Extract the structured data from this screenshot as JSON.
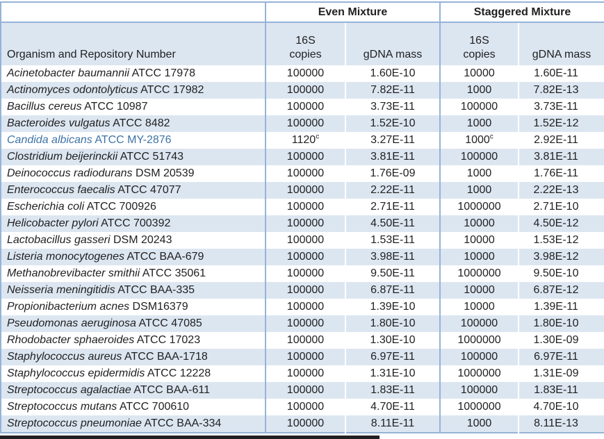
{
  "header": {
    "group_even": "Even Mixture",
    "group_staggered": "Staggered Mixture",
    "organism_col": "Organism and Repository Number",
    "copies_line1": "16S",
    "copies_line2": "copies",
    "mass_label": "gDNA mass"
  },
  "colors": {
    "border_blue": "#95B3D7",
    "row_band": "#DCE6F1",
    "highlight_text": "#3E73A6",
    "text": "#1F1F1F"
  },
  "rows": [
    {
      "genus_species": "Acinetobacter baumannii",
      "strain": " ATCC 17978",
      "even_copies": "100000",
      "even_copies_sup": "",
      "even_gdna_mass": "1.60E-10",
      "stag_copies": "10000",
      "stag_copies_sup": "",
      "stag_gdna_mass": "1.60E-11",
      "highlight": false
    },
    {
      "genus_species": "Actinomyces odontolyticus",
      "strain": " ATCC 17982",
      "even_copies": "100000",
      "even_copies_sup": "",
      "even_gdna_mass": "7.82E-11",
      "stag_copies": "1000",
      "stag_copies_sup": "",
      "stag_gdna_mass": "7.82E-13",
      "highlight": false
    },
    {
      "genus_species": "Bacillus cereus",
      "strain": " ATCC 10987",
      "even_copies": "100000",
      "even_copies_sup": "",
      "even_gdna_mass": "3.73E-11",
      "stag_copies": "100000",
      "stag_copies_sup": "",
      "stag_gdna_mass": "3.73E-11",
      "highlight": false
    },
    {
      "genus_species": "Bacteroides vulgatus",
      "strain": " ATCC 8482",
      "even_copies": "100000",
      "even_copies_sup": "",
      "even_gdna_mass": "1.52E-10",
      "stag_copies": "1000",
      "stag_copies_sup": "",
      "stag_gdna_mass": "1.52E-12",
      "highlight": false
    },
    {
      "genus_species": "Candida albicans",
      "strain": " ATCC MY-2876",
      "even_copies": "1120",
      "even_copies_sup": "c",
      "even_gdna_mass": "3.27E-11",
      "stag_copies": "1000",
      "stag_copies_sup": "c",
      "stag_gdna_mass": "2.92E-11",
      "highlight": true
    },
    {
      "genus_species": "Clostridium beijerinckii",
      "strain": " ATCC 51743",
      "even_copies": "100000",
      "even_copies_sup": "",
      "even_gdna_mass": "3.81E-11",
      "stag_copies": "100000",
      "stag_copies_sup": "",
      "stag_gdna_mass": "3.81E-11",
      "highlight": false
    },
    {
      "genus_species": "Deinococcus radiodurans",
      "strain": " DSM 20539",
      "even_copies": "100000",
      "even_copies_sup": "",
      "even_gdna_mass": "1.76E-09",
      "stag_copies": "1000",
      "stag_copies_sup": "",
      "stag_gdna_mass": "1.76E-11",
      "highlight": false
    },
    {
      "genus_species": "Enterococcus faecalis",
      "strain": " ATCC 47077",
      "even_copies": "100000",
      "even_copies_sup": "",
      "even_gdna_mass": "2.22E-11",
      "stag_copies": "1000",
      "stag_copies_sup": "",
      "stag_gdna_mass": "2.22E-13",
      "highlight": false
    },
    {
      "genus_species": "Escherichia coli",
      "strain": " ATCC 700926",
      "even_copies": "100000",
      "even_copies_sup": "",
      "even_gdna_mass": "2.71E-11",
      "stag_copies": "1000000",
      "stag_copies_sup": "",
      "stag_gdna_mass": "2.71E-10",
      "highlight": false
    },
    {
      "genus_species": "Helicobacter pylori",
      "strain": " ATCC 700392",
      "even_copies": "100000",
      "even_copies_sup": "",
      "even_gdna_mass": "4.50E-11",
      "stag_copies": "10000",
      "stag_copies_sup": "",
      "stag_gdna_mass": "4.50E-12",
      "highlight": false
    },
    {
      "genus_species": "Lactobacillus gasseri",
      "strain": " DSM 20243",
      "even_copies": "100000",
      "even_copies_sup": "",
      "even_gdna_mass": "1.53E-11",
      "stag_copies": "10000",
      "stag_copies_sup": "",
      "stag_gdna_mass": "1.53E-12",
      "highlight": false
    },
    {
      "genus_species": "Listeria monocytogenes",
      "strain": " ATCC BAA-679",
      "even_copies": "100000",
      "even_copies_sup": "",
      "even_gdna_mass": "3.98E-11",
      "stag_copies": "10000",
      "stag_copies_sup": "",
      "stag_gdna_mass": "3.98E-12",
      "highlight": false
    },
    {
      "genus_species": "Methanobrevibacter smithii",
      "strain": " ATCC 35061",
      "even_copies": "100000",
      "even_copies_sup": "",
      "even_gdna_mass": "9.50E-11",
      "stag_copies": "1000000",
      "stag_copies_sup": "",
      "stag_gdna_mass": "9.50E-10",
      "highlight": false
    },
    {
      "genus_species": "Neisseria meningitidis",
      "strain": " ATCC BAA-335",
      "even_copies": "100000",
      "even_copies_sup": "",
      "even_gdna_mass": "6.87E-11",
      "stag_copies": "10000",
      "stag_copies_sup": "",
      "stag_gdna_mass": "6.87E-12",
      "highlight": false
    },
    {
      "genus_species": "Propionibacterium acnes",
      "strain": " DSM16379",
      "even_copies": "100000",
      "even_copies_sup": "",
      "even_gdna_mass": "1.39E-10",
      "stag_copies": "10000",
      "stag_copies_sup": "",
      "stag_gdna_mass": "1.39E-11",
      "highlight": false
    },
    {
      "genus_species": "Pseudomonas aeruginosa",
      "strain": " ATCC 47085",
      "even_copies": "100000",
      "even_copies_sup": "",
      "even_gdna_mass": "1.80E-10",
      "stag_copies": "100000",
      "stag_copies_sup": "",
      "stag_gdna_mass": "1.80E-10",
      "highlight": false
    },
    {
      "genus_species": "Rhodobacter sphaeroides",
      "strain": " ATCC 17023",
      "even_copies": "100000",
      "even_copies_sup": "",
      "even_gdna_mass": "1.30E-10",
      "stag_copies": "1000000",
      "stag_copies_sup": "",
      "stag_gdna_mass": "1.30E-09",
      "highlight": false
    },
    {
      "genus_species": "Staphylococcus aureus",
      "strain": " ATCC BAA-1718",
      "even_copies": "100000",
      "even_copies_sup": "",
      "even_gdna_mass": "6.97E-11",
      "stag_copies": "100000",
      "stag_copies_sup": "",
      "stag_gdna_mass": "6.97E-11",
      "highlight": false
    },
    {
      "genus_species": "Staphylococcus epidermidis",
      "strain": " ATCC 12228",
      "even_copies": "100000",
      "even_copies_sup": "",
      "even_gdna_mass": "1.31E-10",
      "stag_copies": "1000000",
      "stag_copies_sup": "",
      "stag_gdna_mass": "1.31E-09",
      "highlight": false
    },
    {
      "genus_species": "Streptococcus agalactiae",
      "strain": " ATCC BAA-611",
      "even_copies": "100000",
      "even_copies_sup": "",
      "even_gdna_mass": "1.83E-11",
      "stag_copies": "100000",
      "stag_copies_sup": "",
      "stag_gdna_mass": "1.83E-11",
      "highlight": false
    },
    {
      "genus_species": "Streptococcus mutans",
      "strain": " ATCC 700610",
      "even_copies": "100000",
      "even_copies_sup": "",
      "even_gdna_mass": "4.70E-11",
      "stag_copies": "1000000",
      "stag_copies_sup": "",
      "stag_gdna_mass": "4.70E-10",
      "highlight": false
    },
    {
      "genus_species": "Streptococcus pneumoniae",
      "strain": " ATCC BAA-334",
      "even_copies": "100000",
      "even_copies_sup": "",
      "even_gdna_mass": "8.11E-11",
      "stag_copies": "1000",
      "stag_copies_sup": "",
      "stag_gdna_mass": "8.11E-13",
      "highlight": false
    }
  ]
}
